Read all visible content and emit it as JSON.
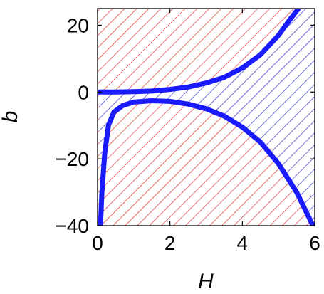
{
  "chart_data": {
    "type": "area",
    "title": "",
    "xlabel": "H",
    "ylabel": "b",
    "xlim": [
      0,
      6
    ],
    "ylim": [
      -40,
      25
    ],
    "x_ticks": [
      "0",
      "2",
      "4",
      "6"
    ],
    "y_ticks": [
      "20",
      "0",
      "−20",
      "−40"
    ],
    "x_tick_values": [
      0,
      2,
      4,
      6
    ],
    "y_tick_values": [
      20,
      0,
      -20,
      -40
    ],
    "grid": false,
    "legend": "none",
    "colors": {
      "curve": "#1a1aff",
      "outer_region_hatch": "#e02020",
      "inner_region_hatch": "#2020c8",
      "frame": "#000000"
    },
    "regions": [
      {
        "hatch_color": "red",
        "location": "above upper curve"
      },
      {
        "hatch_color": "blue",
        "location": "between curves"
      },
      {
        "hatch_color": "red",
        "location": "below lower curve"
      }
    ],
    "series": [
      {
        "values_xy": [
          [
            0.05,
            0.0
          ],
          [
            0.5,
            0.0
          ],
          [
            1.0,
            0.1
          ],
          [
            1.5,
            0.3
          ],
          [
            2.0,
            0.8
          ],
          [
            2.5,
            1.5
          ],
          [
            3.0,
            2.7
          ],
          [
            3.5,
            4.4
          ],
          [
            4.0,
            7.2
          ],
          [
            4.5,
            11.2
          ],
          [
            5.0,
            17.0
          ],
          [
            5.3,
            21.5
          ],
          [
            5.55,
            25.0
          ]
        ]
      },
      {
        "values_xy": [
          [
            0.08,
            -40.0
          ],
          [
            0.12,
            -30.0
          ],
          [
            0.2,
            -18.0
          ],
          [
            0.3,
            -10.0
          ],
          [
            0.45,
            -6.0
          ],
          [
            0.7,
            -4.0
          ],
          [
            1.0,
            -3.0
          ],
          [
            1.5,
            -2.6
          ],
          [
            2.0,
            -2.8
          ],
          [
            2.5,
            -3.6
          ],
          [
            3.0,
            -5.0
          ],
          [
            3.5,
            -7.2
          ],
          [
            4.0,
            -10.5
          ],
          [
            4.5,
            -15.0
          ],
          [
            5.0,
            -21.5
          ],
          [
            5.5,
            -30.0
          ],
          [
            5.95,
            -40.0
          ]
        ]
      }
    ]
  }
}
